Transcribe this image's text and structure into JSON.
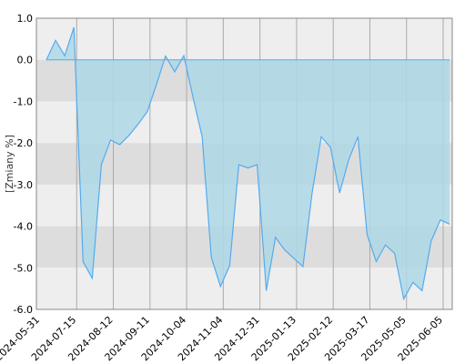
{
  "chart_data": {
    "type": "area",
    "title": "",
    "xlabel": "",
    "ylabel": "[Zmiany %]",
    "ylim": [
      -6.0,
      1.0
    ],
    "yticks": [
      1.0,
      0.0,
      -1.0,
      -2.0,
      -3.0,
      -4.0,
      -5.0,
      -6.0
    ],
    "y_tick_labels": [
      "1.0",
      "0.0",
      "-1.0",
      "-2.0",
      "-3.0",
      "-4.0",
      "-5.0",
      "-6.0"
    ],
    "x_tick_labels": [
      "2024-05-31",
      "2024-07-15",
      "2024-08-12",
      "2024-09-11",
      "2024-10-04",
      "2024-11-04",
      "2024-12-31",
      "2025-01-13",
      "2025-02-12",
      "2025-03-17",
      "2025-05-05",
      "2025-06-05"
    ],
    "grid": true,
    "colors": {
      "line": "#55aaee",
      "fill": "#add8e6",
      "band_light": "#eeeeee",
      "band_dark": "#dddddd",
      "grid": "#aaaaaa"
    },
    "series": [
      {
        "values": [
          0.0,
          0.47,
          0.1,
          0.78,
          -4.85,
          -5.25,
          -2.52,
          -1.93,
          -2.04,
          -1.82,
          -1.55,
          -1.25,
          -0.6,
          0.09,
          -0.29,
          0.1,
          -0.9,
          -1.85,
          -4.75,
          -5.45,
          -4.95,
          -2.52,
          -2.6,
          -2.52,
          -5.55,
          -4.27,
          -4.57,
          -4.77,
          -4.97,
          -3.2,
          -1.85,
          -2.1,
          -3.2,
          -2.4,
          -1.85,
          -4.2,
          -4.85,
          -4.45,
          -4.65,
          -5.75,
          -5.35,
          -5.55,
          -4.35,
          -3.85,
          -3.95
        ]
      }
    ]
  }
}
